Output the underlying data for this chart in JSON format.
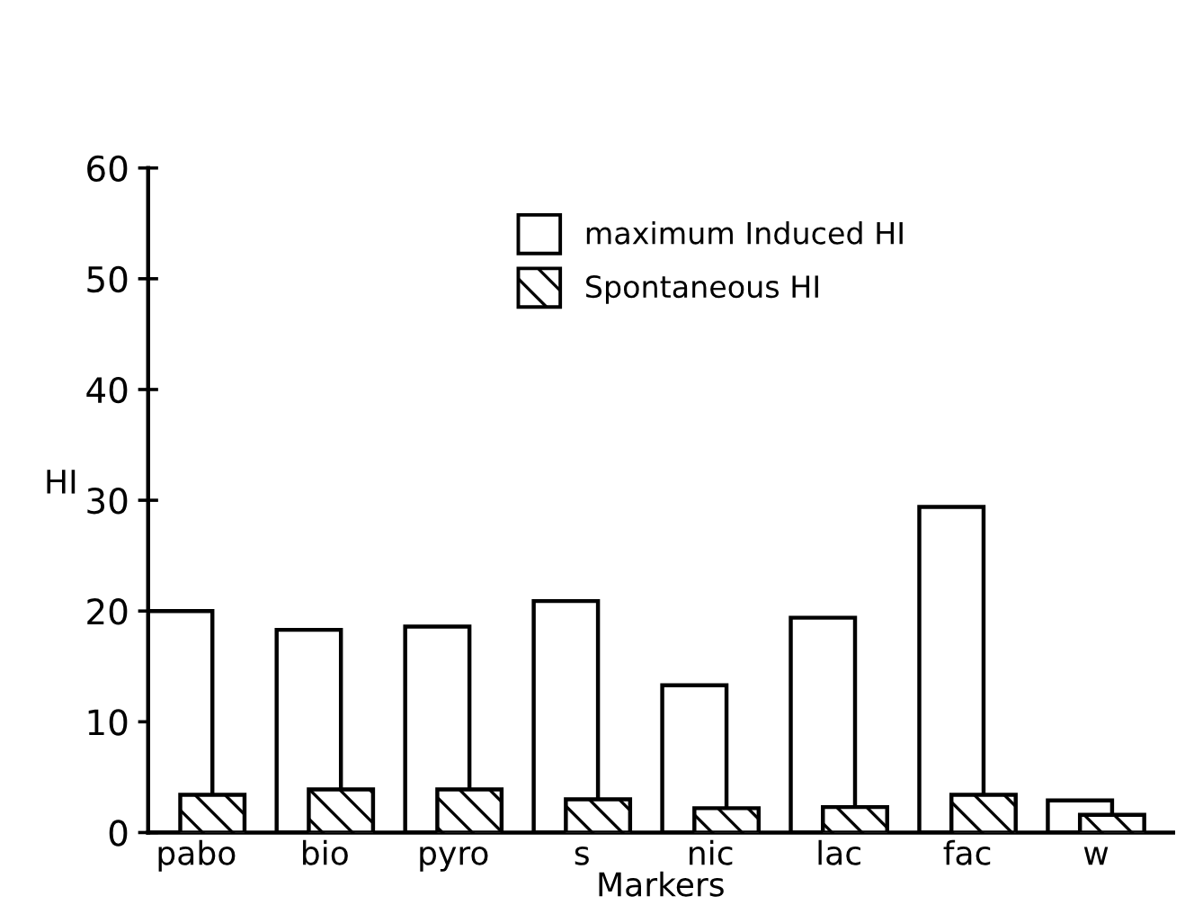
{
  "chart_data": {
    "type": "bar",
    "xlabel": "Markers",
    "ylabel": "HI",
    "categories": [
      "pabo",
      "bio",
      "pyro",
      "s",
      "nic",
      "lac",
      "fac",
      "w"
    ],
    "series": [
      {
        "name": "maximum Induced HI",
        "color": "#000000",
        "values": [
          20,
          18.3,
          18.6,
          20.9,
          13.3,
          19.4,
          29.4,
          2.9
        ]
      },
      {
        "name": "Spontaneous HI",
        "color": "#000000",
        "values": [
          3.4,
          3.9,
          3.9,
          3.0,
          2.2,
          2.3,
          3.4,
          1.6
        ]
      }
    ],
    "ylim": [
      0,
      60
    ],
    "yticks": [
      0,
      10,
      20,
      30,
      40,
      50,
      60
    ],
    "grid": false,
    "legend": "top"
  }
}
